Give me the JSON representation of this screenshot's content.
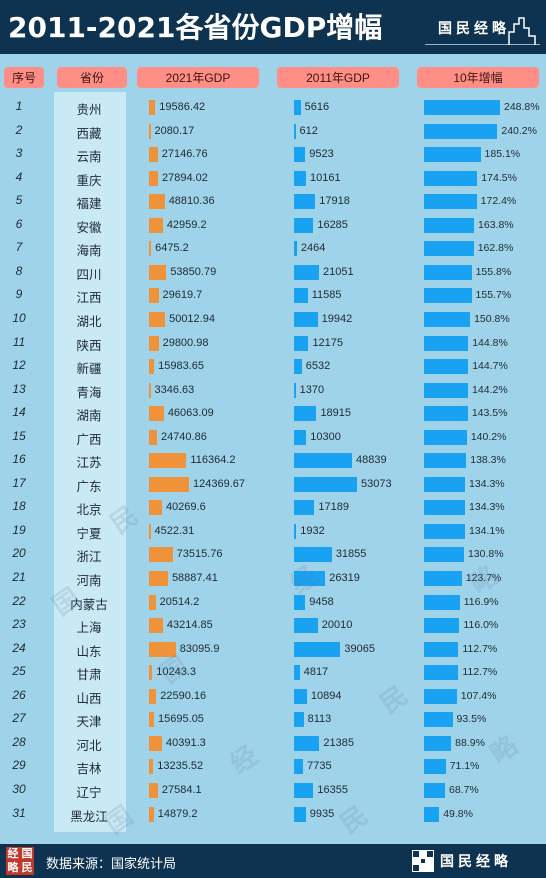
{
  "title": "2011-2021各省份GDP增幅",
  "brand": "国民经略",
  "footer": {
    "source": "数据来源：国家统计局",
    "logo_chars": [
      "经",
      "国",
      "略",
      "民"
    ]
  },
  "watermark": [
    "国",
    "民",
    "经",
    "略"
  ],
  "colors": {
    "background": "#0e3350",
    "panel": "#9fd3ea",
    "header_pill": "#ff8f86",
    "gdp2021_bar": "#f0923a",
    "gdp2011_bar": "#1aa2f2",
    "growth_bar": "#1aa2f2"
  },
  "chart_data": {
    "type": "table",
    "columns": [
      "序号",
      "省份",
      "2021年GDP",
      "2011年GDP",
      "10年增幅"
    ],
    "rows": [
      {
        "rank": "1",
        "province": "贵州",
        "gdp2021": "19586.42",
        "gdp2011": "5616",
        "growth": "248.8%"
      },
      {
        "rank": "2",
        "province": "西藏",
        "gdp2021": "2080.17",
        "gdp2011": "612",
        "growth": "240.2%"
      },
      {
        "rank": "3",
        "province": "云南",
        "gdp2021": "27146.76",
        "gdp2011": "9523",
        "growth": "185.1%"
      },
      {
        "rank": "4",
        "province": "重庆",
        "gdp2021": "27894.02",
        "gdp2011": "10161",
        "growth": "174.5%"
      },
      {
        "rank": "5",
        "province": "福建",
        "gdp2021": "48810.36",
        "gdp2011": "17918",
        "growth": "172.4%"
      },
      {
        "rank": "6",
        "province": "安徽",
        "gdp2021": "42959.2",
        "gdp2011": "16285",
        "growth": "163.8%"
      },
      {
        "rank": "7",
        "province": "海南",
        "gdp2021": "6475.2",
        "gdp2011": "2464",
        "growth": "162.8%"
      },
      {
        "rank": "8",
        "province": "四川",
        "gdp2021": "53850.79",
        "gdp2011": "21051",
        "growth": "155.8%"
      },
      {
        "rank": "9",
        "province": "江西",
        "gdp2021": "29619.7",
        "gdp2011": "11585",
        "growth": "155.7%"
      },
      {
        "rank": "10",
        "province": "湖北",
        "gdp2021": "50012.94",
        "gdp2011": "19942",
        "growth": "150.8%"
      },
      {
        "rank": "11",
        "province": "陕西",
        "gdp2021": "29800.98",
        "gdp2011": "12175",
        "growth": "144.8%"
      },
      {
        "rank": "12",
        "province": "新疆",
        "gdp2021": "15983.65",
        "gdp2011": "6532",
        "growth": "144.7%"
      },
      {
        "rank": "13",
        "province": "青海",
        "gdp2021": "3346.63",
        "gdp2011": "1370",
        "growth": "144.2%"
      },
      {
        "rank": "14",
        "province": "湖南",
        "gdp2021": "46063.09",
        "gdp2011": "18915",
        "growth": "143.5%"
      },
      {
        "rank": "15",
        "province": "广西",
        "gdp2021": "24740.86",
        "gdp2011": "10300",
        "growth": "140.2%"
      },
      {
        "rank": "16",
        "province": "江苏",
        "gdp2021": "116364.2",
        "gdp2011": "48839",
        "growth": "138.3%"
      },
      {
        "rank": "17",
        "province": "广东",
        "gdp2021": "124369.67",
        "gdp2011": "53073",
        "growth": "134.3%"
      },
      {
        "rank": "18",
        "province": "北京",
        "gdp2021": "40269.6",
        "gdp2011": "17189",
        "growth": "134.3%"
      },
      {
        "rank": "19",
        "province": "宁夏",
        "gdp2021": "4522.31",
        "gdp2011": "1932",
        "growth": "134.1%"
      },
      {
        "rank": "20",
        "province": "浙江",
        "gdp2021": "73515.76",
        "gdp2011": "31855",
        "growth": "130.8%"
      },
      {
        "rank": "21",
        "province": "河南",
        "gdp2021": "58887.41",
        "gdp2011": "26319",
        "growth": "123.7%"
      },
      {
        "rank": "22",
        "province": "内蒙古",
        "gdp2021": "20514.2",
        "gdp2011": "9458",
        "growth": "116.9%"
      },
      {
        "rank": "23",
        "province": "上海",
        "gdp2021": "43214.85",
        "gdp2011": "20010",
        "growth": "116.0%"
      },
      {
        "rank": "24",
        "province": "山东",
        "gdp2021": "83095.9",
        "gdp2011": "39065",
        "growth": "112.7%"
      },
      {
        "rank": "25",
        "province": "甘肃",
        "gdp2021": "10243.3",
        "gdp2011": "4817",
        "growth": "112.7%"
      },
      {
        "rank": "26",
        "province": "山西",
        "gdp2021": "22590.16",
        "gdp2011": "10894",
        "growth": "107.4%"
      },
      {
        "rank": "27",
        "province": "天津",
        "gdp2021": "15695.05",
        "gdp2011": "8113",
        "growth": "93.5%"
      },
      {
        "rank": "28",
        "province": "河北",
        "gdp2021": "40391.3",
        "gdp2011": "21385",
        "growth": "88.9%"
      },
      {
        "rank": "29",
        "province": "吉林",
        "gdp2021": "13235.52",
        "gdp2011": "7735",
        "growth": "71.1%"
      },
      {
        "rank": "30",
        "province": "辽宁",
        "gdp2021": "27584.1",
        "gdp2011": "16355",
        "growth": "68.7%"
      },
      {
        "rank": "31",
        "province": "黑龙江",
        "gdp2021": "14879.2",
        "gdp2011": "9935",
        "growth": "49.8%"
      }
    ]
  }
}
